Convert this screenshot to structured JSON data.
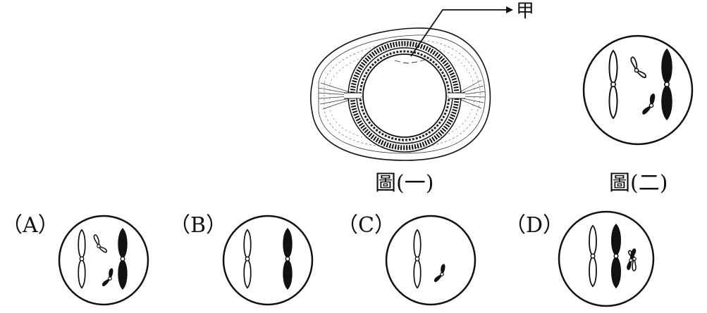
{
  "figure1": {
    "caption": "圖(一)",
    "pointer_label": "甲"
  },
  "figure2": {
    "caption": "圖(二)"
  },
  "options": [
    {
      "key": "A",
      "label": "（A）"
    },
    {
      "key": "B",
      "label": "（B）"
    },
    {
      "key": "C",
      "label": "（C）"
    },
    {
      "key": "D",
      "label": "（D）"
    }
  ],
  "colors": {
    "ink": "#111111",
    "paper": "#ffffff"
  }
}
